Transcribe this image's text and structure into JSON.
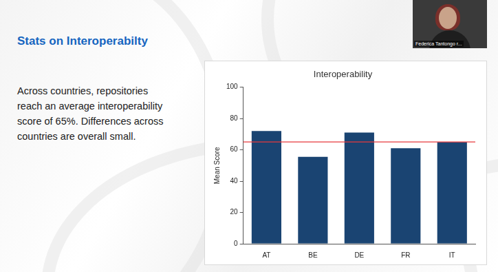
{
  "slide": {
    "title": "Stats on Interoperabilty",
    "text": [
      "Across countries, repositories",
      "reach an average interoperability",
      "score of 65%. Differences across",
      "countries are overall small."
    ],
    "webcam_label": "Federica Tantongo r..."
  },
  "chart_data": {
    "type": "bar",
    "title": "Interoperability",
    "y_label": "Mean Score",
    "categories": [
      "AT",
      "BE",
      "DE",
      "FR",
      "IT"
    ],
    "values": [
      72,
      55.5,
      71,
      61,
      65
    ],
    "color": "#1a4472",
    "ylim": [
      0,
      100
    ],
    "yticks": [
      0,
      20,
      40,
      60,
      80,
      100
    ],
    "grid": false,
    "reference_line": {
      "value": 65,
      "color": "#e8383d"
    }
  }
}
